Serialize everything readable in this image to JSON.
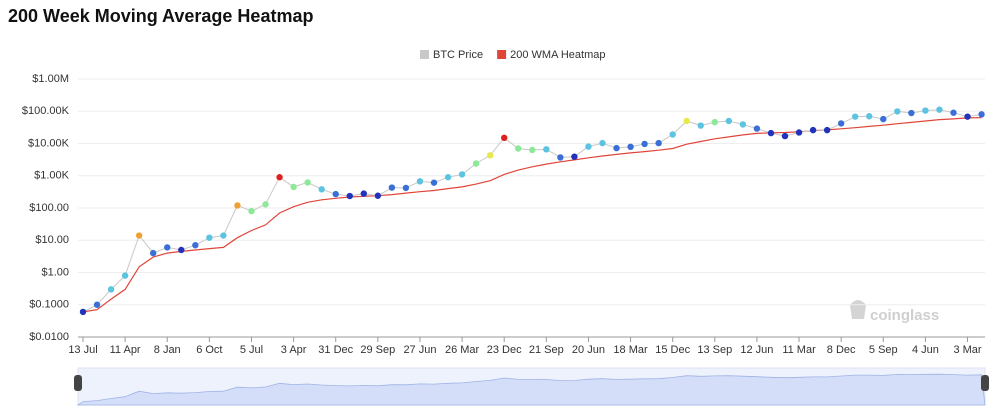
{
  "chart_data": {
    "type": "line",
    "title": "200 Week Moving Average Heatmap",
    "watermark": "coinglass",
    "categories": [
      "13 Jul",
      null,
      null,
      "11 Apr",
      null,
      null,
      "8 Jan",
      null,
      null,
      "6 Oct",
      null,
      null,
      "5 Jul",
      null,
      null,
      "3 Apr",
      null,
      null,
      "31 Dec",
      null,
      null,
      "29 Sep",
      null,
      null,
      "27 Jun",
      null,
      null,
      "26 Mar",
      null,
      null,
      "23 Dec",
      null,
      null,
      "21 Sep",
      null,
      null,
      "20 Jun",
      null,
      null,
      "18 Mar",
      null,
      null,
      "15 Dec",
      null,
      null,
      "13 Sep",
      null,
      null,
      "12 Jun",
      null,
      null,
      "11 Mar",
      null,
      null,
      "8 Dec",
      null,
      null,
      "5 Sep",
      null,
      null,
      "4 Jun",
      null,
      null,
      "3 Mar",
      null
    ],
    "series": [
      {
        "name": "BTC Price",
        "color": "#c8c8c8",
        "values": [
          0.06,
          0.1,
          0.3,
          0.8,
          14,
          4,
          6,
          5,
          7,
          12,
          14,
          120,
          80,
          130,
          900,
          450,
          620,
          380,
          270,
          235,
          280,
          240,
          430,
          420,
          670,
          610,
          900,
          1100,
          2400,
          4300,
          15000,
          7000,
          6300,
          6600,
          3700,
          3900,
          8000,
          10300,
          7200,
          7900,
          9700,
          10300,
          19000,
          50000,
          36000,
          46000,
          50000,
          39000,
          29000,
          21000,
          17000,
          22000,
          26000,
          26000,
          42000,
          68000,
          70000,
          57000,
          99000,
          88000,
          105000,
          112000,
          90000,
          68000,
          80000
        ]
      },
      {
        "name": "200 WMA Heatmap",
        "color": "#e0453a",
        "values": [
          0.06,
          0.07,
          0.15,
          0.3,
          1.5,
          3,
          4,
          4.5,
          5,
          5.5,
          6,
          12,
          20,
          30,
          70,
          110,
          150,
          180,
          200,
          220,
          230,
          240,
          260,
          290,
          320,
          350,
          400,
          450,
          550,
          700,
          1100,
          1500,
          1900,
          2300,
          2700,
          3100,
          3600,
          4100,
          4600,
          5100,
          5600,
          6200,
          7000,
          9500,
          11500,
          14000,
          16000,
          18500,
          20500,
          21500,
          22000,
          23000,
          25000,
          26500,
          28500,
          31000,
          34000,
          37000,
          41000,
          45000,
          50000,
          55000,
          58000,
          62000,
          63000
        ]
      }
    ],
    "heatmap_colors": [
      "#2233bb",
      "#3a6fd8",
      "#5cc4e0",
      "#8ee89a",
      "#e8e84a",
      "#f0a030",
      "#e02020"
    ],
    "log_scale": true,
    "ylim": [
      0.01,
      1000000
    ],
    "yticks": [
      {
        "value": 0.01,
        "label": "$0.0100"
      },
      {
        "value": 0.1,
        "label": "$0.1000"
      },
      {
        "value": 1,
        "label": "$1.00"
      },
      {
        "value": 10,
        "label": "$10.00"
      },
      {
        "value": 100,
        "label": "$100.00"
      },
      {
        "value": 1000,
        "label": "$1.00K"
      },
      {
        "value": 10000,
        "label": "$10.00K"
      },
      {
        "value": 100000,
        "label": "$100.00K"
      },
      {
        "value": 1000000,
        "label": "$1.00M"
      }
    ],
    "grid": true
  }
}
